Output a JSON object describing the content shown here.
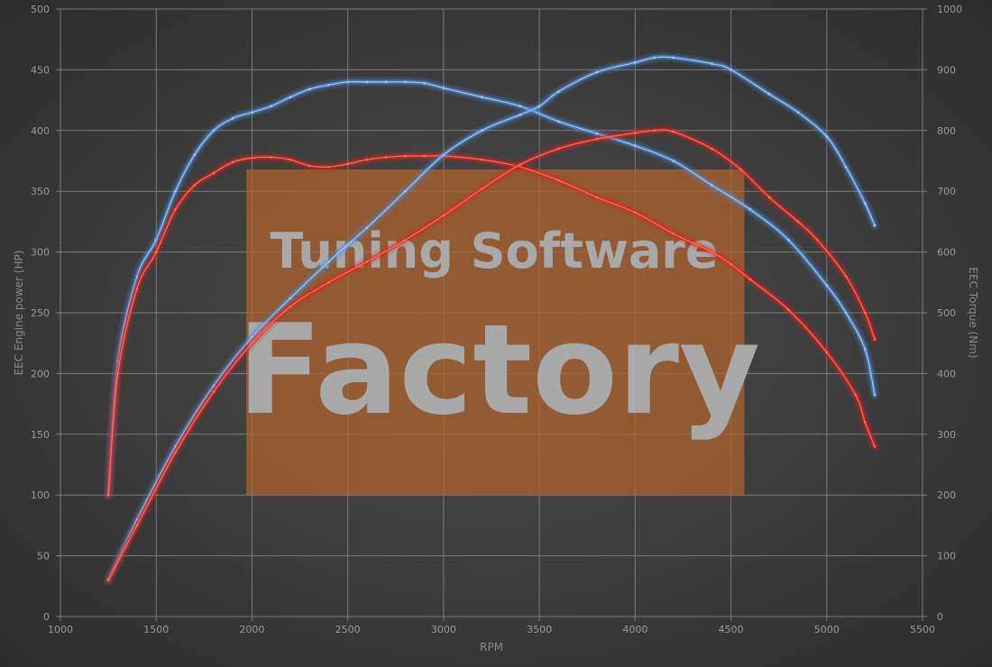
{
  "chart_data": {
    "type": "line",
    "title": "",
    "xlabel": "RPM",
    "ylabel_left": "EEC Engine power (HP)",
    "ylabel_right": "EEC Torque (Nm)",
    "xlim": [
      1000,
      5500
    ],
    "ylim_left": [
      0,
      500
    ],
    "ylim_right": [
      0,
      1000
    ],
    "x_ticks": [
      "1000",
      "1500",
      "2000",
      "2500",
      "3000",
      "3500",
      "4000",
      "4500",
      "5000",
      "5500"
    ],
    "y_left_ticks": [
      "0",
      "50",
      "100",
      "150",
      "200",
      "250",
      "300",
      "350",
      "400",
      "450",
      "500"
    ],
    "y_right_ticks": [
      "0",
      "100",
      "200",
      "300",
      "400",
      "500",
      "600",
      "700",
      "800",
      "900",
      "1000"
    ],
    "grid": true,
    "legend": "none",
    "watermark": {
      "line1": "Tuning Software",
      "line2": "Factory",
      "box_color": "#b0642c"
    },
    "series": [
      {
        "axis": "right",
        "color": "#4a8fe0",
        "line_color": "#a8c8f0",
        "x": [
          1250,
          1300,
          1400,
          1500,
          1600,
          1700,
          1800,
          1900,
          2000,
          2100,
          2200,
          2300,
          2400,
          2500,
          2600,
          2700,
          2800,
          2900,
          3000,
          3200,
          3400,
          3600,
          3800,
          4000,
          4200,
          4400,
          4600,
          4800,
          5000,
          5100,
          5200,
          5250
        ],
        "y": [
          200,
          420,
          560,
          620,
          700,
          760,
          800,
          820,
          830,
          840,
          855,
          868,
          875,
          880,
          880,
          880,
          880,
          878,
          870,
          855,
          840,
          815,
          795,
          775,
          750,
          710,
          670,
          620,
          545,
          500,
          440,
          365
        ]
      },
      {
        "axis": "right",
        "color": "#e02020",
        "line_color": "#ff7050",
        "x": [
          1250,
          1300,
          1400,
          1500,
          1600,
          1700,
          1800,
          1900,
          2000,
          2100,
          2200,
          2300,
          2400,
          2500,
          2600,
          2700,
          2800,
          2900,
          3000,
          3200,
          3400,
          3600,
          3800,
          4000,
          4200,
          4400,
          4500,
          4600,
          4800,
          5000,
          5150,
          5200,
          5250
        ],
        "y": [
          200,
          400,
          540,
          600,
          670,
          710,
          730,
          748,
          755,
          756,
          752,
          742,
          740,
          745,
          752,
          756,
          758,
          758,
          758,
          752,
          740,
          718,
          690,
          665,
          630,
          600,
          580,
          555,
          505,
          435,
          365,
          320,
          280
        ]
      },
      {
        "axis": "left",
        "color": "#4a8fe0",
        "line_color": "#a8c8f0",
        "x": [
          1250,
          1400,
          1600,
          1800,
          2000,
          2200,
          2400,
          2600,
          2800,
          3000,
          3200,
          3400,
          3500,
          3600,
          3800,
          4000,
          4100,
          4200,
          4400,
          4500,
          4700,
          4850,
          5000,
          5100,
          5200,
          5250
        ],
        "y": [
          30,
          80,
          140,
          190,
          230,
          262,
          292,
          320,
          350,
          380,
          400,
          413,
          420,
          432,
          448,
          456,
          460,
          460,
          455,
          450,
          430,
          415,
          395,
          370,
          340,
          322
        ]
      },
      {
        "axis": "left",
        "color": "#e02020",
        "line_color": "#ff7050",
        "x": [
          1250,
          1400,
          1600,
          1800,
          2000,
          2200,
          2400,
          2600,
          2800,
          3000,
          3200,
          3400,
          3600,
          3800,
          4000,
          4100,
          4200,
          4400,
          4550,
          4700,
          4850,
          4950,
          5100,
          5200,
          5250
        ],
        "y": [
          30,
          75,
          135,
          185,
          225,
          255,
          275,
          292,
          310,
          330,
          352,
          372,
          385,
          393,
          398,
          400,
          399,
          385,
          368,
          345,
          325,
          310,
          280,
          250,
          228
        ]
      }
    ]
  }
}
